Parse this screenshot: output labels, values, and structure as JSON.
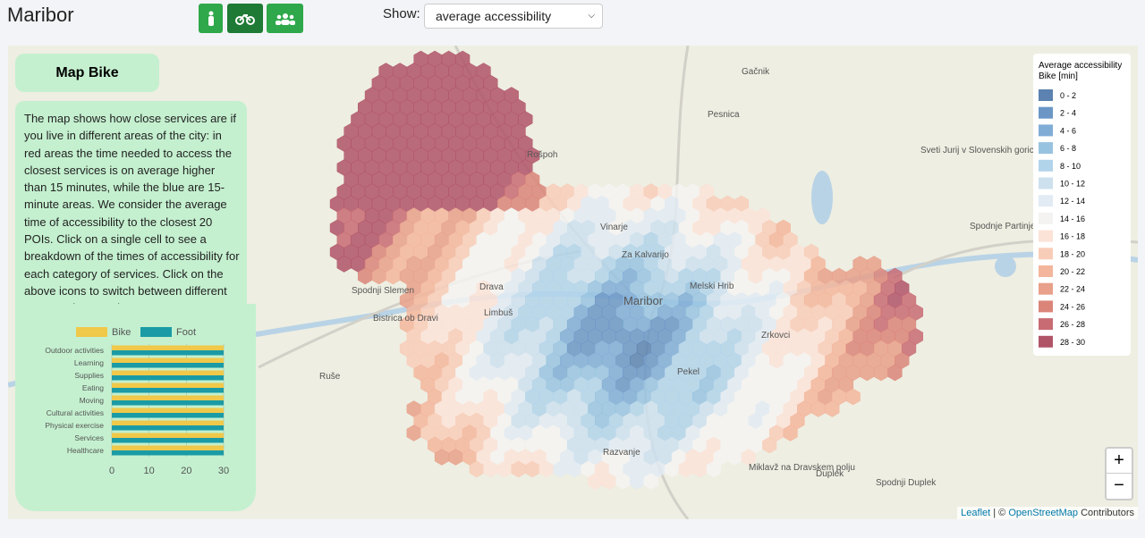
{
  "header": {
    "title": "Maribor",
    "show_label": "Show:",
    "select_value": "average accessibility"
  },
  "panel": {
    "title": "Map Bike",
    "description": "The map shows how close services are if you live in different areas of the city: in red areas the time needed to access the closest services is on average higher than 15 minutes, while the blue are 15-minute areas. We consider the average time of accessibility to the closest 20 POIs. Click on a single cell to see a breakdown of the times of accessibility for each category of services. Click on the above icons to switch between different maps and categories."
  },
  "chart_data": {
    "type": "hbar",
    "categories": [
      "Outdoor activities",
      "Learning",
      "Supplies",
      "Eating",
      "Moving",
      "Cultural activities",
      "Physical exercise",
      "Services",
      "Healthcare"
    ],
    "series": [
      {
        "name": "Bike",
        "color": "#f0c84a",
        "values": [
          30,
          30,
          30,
          30,
          30,
          30,
          30,
          30,
          30
        ]
      },
      {
        "name": "Foot",
        "color": "#1a9ba5",
        "values": [
          30,
          30,
          30,
          30,
          30,
          30,
          30,
          30,
          30
        ]
      }
    ],
    "xlim": [
      0,
      30
    ],
    "xticks": [
      0,
      10,
      20,
      30
    ],
    "grid": true
  },
  "map_legend": {
    "title_lines": [
      "Average accessibility",
      "Bike [min]"
    ],
    "items": [
      {
        "label": "0 - 2",
        "color": "#5b82b0"
      },
      {
        "label": "2 - 4",
        "color": "#6b96c6"
      },
      {
        "label": "4 - 6",
        "color": "#80add6"
      },
      {
        "label": "6 - 8",
        "color": "#98c3e0"
      },
      {
        "label": "8 - 10",
        "color": "#b2d4ea"
      },
      {
        "label": "10 - 12",
        "color": "#cde0ee"
      },
      {
        "label": "12 - 14",
        "color": "#e2ebf3"
      },
      {
        "label": "14 - 16",
        "color": "#f4f3f1"
      },
      {
        "label": "16 - 18",
        "color": "#fbe3d8"
      },
      {
        "label": "18 - 20",
        "color": "#f8cdb8"
      },
      {
        "label": "20 - 22",
        "color": "#f3b69c"
      },
      {
        "label": "22 - 24",
        "color": "#e8a08a"
      },
      {
        "label": "24 - 26",
        "color": "#db8579"
      },
      {
        "label": "26 - 28",
        "color": "#c86b73"
      },
      {
        "label": "28 - 30",
        "color": "#b05468"
      }
    ]
  },
  "map_labels": [
    "Gačnik",
    "Pesnica",
    "Sveti Jurij v Slovenskih goricah",
    "Spodnje Partinje",
    "Maribor",
    "Vinarje",
    "Za Kalvarijo",
    "Melski Hrib",
    "Limbuš",
    "Drava",
    "Spodnji Slemen",
    "Bistrica ob Dravi",
    "Ruše",
    "Zrkovci",
    "Razvanje",
    "Miklavž na Dravskem polju",
    "Duplek",
    "Spodnji Duplek",
    "Pekel",
    "Rošpoh"
  ],
  "zoom": {
    "in": "+",
    "out": "−"
  },
  "attribution": {
    "leaflet": "Leaflet",
    "separator": "| ©",
    "osm": "OpenStreetMap",
    "contributors": "Contributors"
  }
}
